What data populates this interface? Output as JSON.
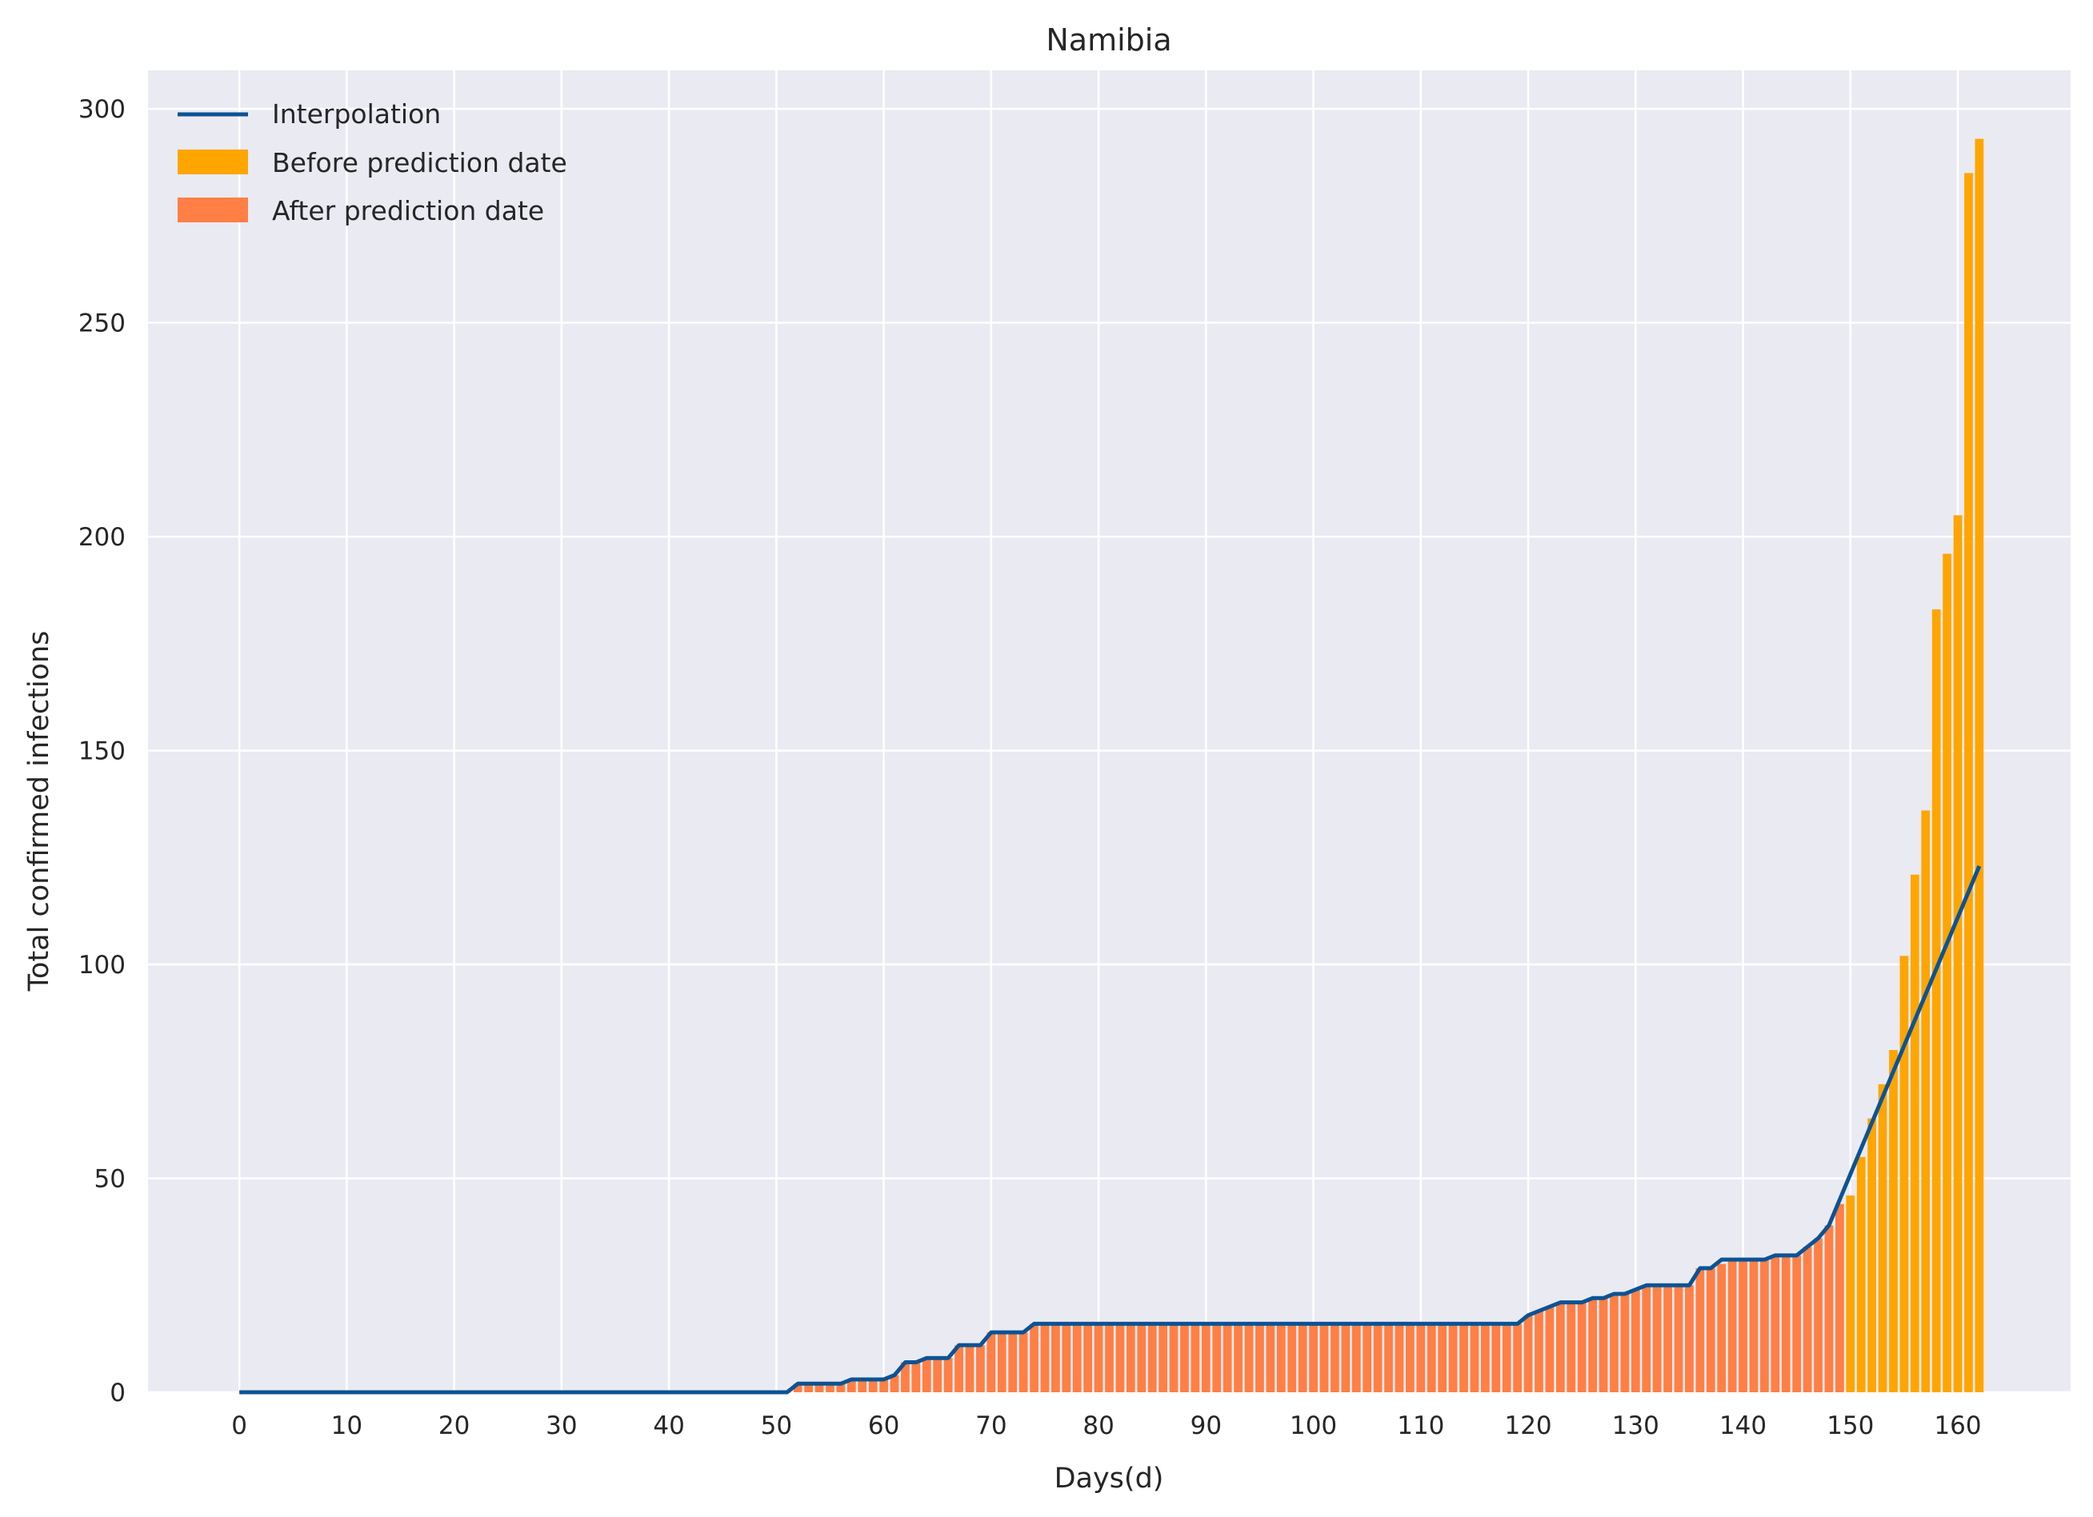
{
  "chart_data": {
    "type": "bar",
    "title": "Namibia",
    "xlabel": "Days(d)",
    "ylabel": "Total confirmed infections",
    "xlim": [
      -8.5,
      170.5
    ],
    "ylim": [
      0,
      309
    ],
    "xticks": [
      0,
      10,
      20,
      30,
      40,
      50,
      60,
      70,
      80,
      90,
      100,
      110,
      120,
      130,
      140,
      150,
      160
    ],
    "yticks": [
      0,
      50,
      100,
      150,
      200,
      250,
      300
    ],
    "grid": true,
    "legend_position": "upper-left",
    "colors": {
      "background": "#eaeaf2",
      "grid": "#ffffff",
      "line": "#0b5394",
      "before": "#ffa500",
      "after": "#ff7f45"
    },
    "series": [
      {
        "name": "Interpolation",
        "kind": "line",
        "x": [
          0,
          51,
          52,
          56,
          57,
          60,
          61,
          62,
          63,
          64,
          66,
          67,
          69,
          70,
          73,
          74,
          119,
          120,
          123,
          125,
          126,
          127,
          128,
          129,
          130,
          131,
          135,
          136,
          137,
          138,
          142,
          143,
          145,
          147,
          148,
          162
        ],
        "y": [
          0,
          0,
          2,
          2,
          3,
          3,
          4,
          7,
          7,
          8,
          8,
          11,
          11,
          14,
          14,
          16,
          16,
          18,
          21,
          21,
          22,
          22,
          23,
          23,
          24,
          25,
          25,
          29,
          29,
          31,
          31,
          32,
          32,
          36,
          39,
          123
        ]
      },
      {
        "name": "Before prediction date",
        "kind": "bar",
        "x": [
          150,
          151,
          152,
          153,
          154,
          155,
          156,
          157,
          158,
          159,
          160,
          161,
          162
        ],
        "values": [
          46,
          55,
          64,
          72,
          80,
          102,
          121,
          136,
          183,
          196,
          205,
          285,
          293
        ]
      },
      {
        "name": "After prediction date",
        "kind": "bar",
        "start_x": 0,
        "values": [
          0,
          0,
          0,
          0,
          0,
          0,
          0,
          0,
          0,
          0,
          0,
          0,
          0,
          0,
          0,
          0,
          0,
          0,
          0,
          0,
          0,
          0,
          0,
          0,
          0,
          0,
          0,
          0,
          0,
          0,
          0,
          0,
          0,
          0,
          0,
          0,
          0,
          0,
          0,
          0,
          0,
          0,
          0,
          0,
          0,
          0,
          0,
          0,
          0,
          0,
          0,
          0,
          2,
          2,
          2,
          2,
          2,
          3,
          3,
          3,
          3,
          4,
          7,
          7,
          8,
          8,
          8,
          11,
          11,
          11,
          14,
          14,
          14,
          14,
          16,
          16,
          16,
          16,
          16,
          16,
          16,
          16,
          16,
          16,
          16,
          16,
          16,
          16,
          16,
          16,
          16,
          16,
          16,
          16,
          16,
          16,
          16,
          16,
          16,
          16,
          16,
          16,
          16,
          16,
          16,
          16,
          16,
          16,
          16,
          16,
          16,
          16,
          16,
          16,
          16,
          16,
          16,
          16,
          16,
          16,
          18,
          19,
          20,
          21,
          21,
          21,
          22,
          22,
          23,
          23,
          24,
          25,
          25,
          25,
          25,
          25,
          29,
          29,
          30,
          31,
          31,
          31,
          31,
          32,
          32,
          32,
          34,
          36,
          39,
          44
        ]
      }
    ]
  }
}
